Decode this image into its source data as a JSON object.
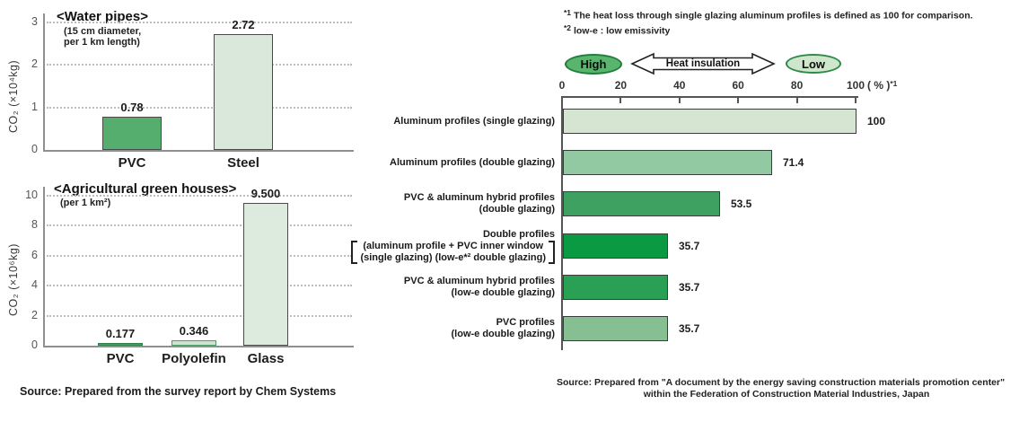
{
  "chart_data": [
    {
      "type": "bar",
      "title": "<Water pipes>",
      "subtitle_lines": [
        "(15 cm diameter,",
        "per 1 km length)"
      ],
      "ylabel": "CO₂ (×10⁴kg)",
      "categories": [
        "PVC",
        "Steel"
      ],
      "values": [
        0.78,
        2.72
      ],
      "value_labels": [
        "0.78",
        "2.72"
      ],
      "bar_colors": [
        "#55ae6d",
        "#d9e8da"
      ],
      "bar_borders": [
        "#4a4a4a",
        "#4a4a4a"
      ],
      "ylim": [
        0,
        3
      ],
      "yticks": [
        0,
        1,
        2,
        3
      ],
      "grid": "dotted horizontal"
    },
    {
      "type": "bar",
      "title": "<Agricultural green houses>",
      "subtitle_lines": [
        "(per 1 km²)"
      ],
      "ylabel": "CO₂ (×10⁶kg)",
      "categories": [
        "PVC",
        "Polyolefin",
        "Glass"
      ],
      "values": [
        0.177,
        0.346,
        9.5
      ],
      "value_labels": [
        "0.177",
        "0.346",
        "9.500"
      ],
      "bar_colors": [
        "#41a263",
        "#cde4cf",
        "#dcebdd"
      ],
      "bar_borders": [
        "#2f7f4a",
        "#4e9a66",
        "#4a4a4a"
      ],
      "ylim": [
        0,
        10
      ],
      "yticks": [
        0,
        2,
        4,
        6,
        8,
        10
      ],
      "grid": "dotted horizontal",
      "source": "Source: Prepared from the survey report by Chem Systems"
    },
    {
      "type": "bar-horizontal",
      "footnotes": [
        {
          "marker": "*1",
          "text": "The heat loss through single glazing aluminum profiles is defined as 100 for comparison."
        },
        {
          "marker": "*2",
          "text": "low-e : low emissivity"
        }
      ],
      "scale_header": {
        "high_label": "High",
        "arrow_label": "Heat insulation",
        "low_label": "Low"
      },
      "xticks": [
        0,
        20,
        40,
        60,
        80,
        100
      ],
      "xlim": [
        0,
        100
      ],
      "axis_unit": "( % )",
      "axis_unit_marker": "*1",
      "rows": [
        {
          "label_lines": [
            "Aluminum profiles (single glazing)"
          ],
          "value": 100,
          "value_label": "100",
          "color": "#d5e5d2"
        },
        {
          "label_lines": [
            "Aluminum profiles (double glazing)"
          ],
          "value": 71.4,
          "value_label": "71.4",
          "color": "#92c9a3"
        },
        {
          "label_lines": [
            "PVC & aluminum hybrid profiles",
            "(double glazing)"
          ],
          "value": 53.5,
          "value_label": "53.5",
          "color": "#3ea161"
        },
        {
          "label_lines": [
            "Double profiles"
          ],
          "bracket_lines": [
            "(aluminum profile +  PVC inner window",
            "(single glazing) (low-e*² double glazing)"
          ],
          "value": 35.7,
          "value_label": "35.7",
          "color": "#0a9a41"
        },
        {
          "label_lines": [
            "PVC & aluminum hybrid profiles",
            "(low-e double glazing)"
          ],
          "value": 35.7,
          "value_label": "35.7",
          "color": "#2aa054"
        },
        {
          "label_lines": [
            "PVC profiles",
            "(low-e double glazing)"
          ],
          "value": 35.7,
          "value_label": "35.7",
          "color": "#85bf92"
        }
      ],
      "ellipse_colors": {
        "high_fill": "#59b46e",
        "high_border": "#1f7e3c",
        "low_fill": "#cfe6cd",
        "low_border": "#2c8a48"
      },
      "source_lines": [
        "Source: Prepared from \"A document by the energy saving construction materials promotion center\"",
        "within the Federation of Construction Material Industries, Japan"
      ]
    }
  ]
}
